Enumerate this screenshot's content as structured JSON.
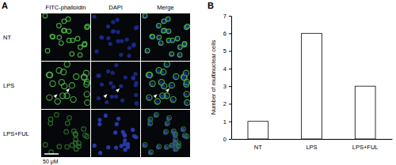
{
  "chart_data": {
    "type": "bar",
    "panel_label": "B",
    "categories": [
      "NT",
      "LPS",
      "LPS+FUL"
    ],
    "values": [
      1,
      6,
      3
    ],
    "color": "#ffffff",
    "ylim": [
      0,
      7
    ],
    "yticks": [
      0,
      1,
      2,
      3,
      4,
      5,
      6,
      7
    ],
    "y_label": "Number of multinuclear cells",
    "grid": false
  },
  "panel_a": {
    "panel_label": "A",
    "columns": [
      "FITC-phalloidin",
      "DAPI",
      "Merge"
    ],
    "rows": [
      "NT",
      "LPS",
      "LPS+FUL"
    ],
    "scale_bar": "50 μM"
  }
}
